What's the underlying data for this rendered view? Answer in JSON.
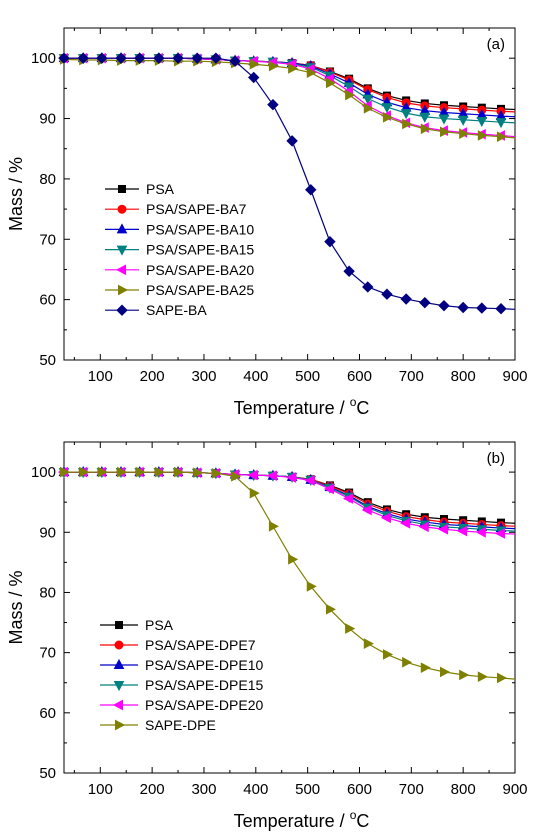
{
  "chart_data": [
    {
      "type": "line",
      "panel_label": "(a)",
      "xlabel": "Temperature / ",
      "xlabel_unit": "C",
      "xlabel_sup": "o",
      "ylabel": "Mass / %",
      "xlim": [
        30,
        900
      ],
      "ylim": [
        50,
        105
      ],
      "xticks": [
        100,
        200,
        300,
        400,
        500,
        600,
        700,
        800,
        900
      ],
      "yticks": [
        50,
        60,
        70,
        80,
        90,
        100
      ],
      "legend_position": "center-left",
      "series": [
        {
          "name": "PSA",
          "color": "#000000",
          "marker": "square",
          "x": [
            30,
            67,
            103,
            140,
            176,
            213,
            250,
            287,
            323,
            360,
            396,
            433,
            470,
            506,
            543,
            580,
            616,
            653,
            690,
            726,
            763,
            800,
            836,
            873,
            900
          ],
          "y": [
            100,
            100,
            100,
            100,
            100,
            100,
            100,
            99.9,
            99.8,
            99.6,
            99.5,
            99.4,
            99.2,
            98.8,
            97.8,
            96.6,
            95.0,
            93.8,
            93.0,
            92.5,
            92.2,
            92.0,
            91.8,
            91.6,
            91.5
          ]
        },
        {
          "name": "PSA/SAPE-BA7",
          "color": "#ff0000",
          "marker": "circle",
          "x": [
            30,
            67,
            103,
            140,
            176,
            213,
            250,
            287,
            323,
            360,
            396,
            433,
            470,
            506,
            543,
            580,
            616,
            653,
            690,
            726,
            763,
            800,
            836,
            873,
            900
          ],
          "y": [
            100,
            100,
            100,
            100,
            100,
            100,
            100,
            99.9,
            99.8,
            99.6,
            99.5,
            99.4,
            99.2,
            98.8,
            97.7,
            96.4,
            94.8,
            93.5,
            92.6,
            92.1,
            91.8,
            91.6,
            91.4,
            91.2,
            91.1
          ]
        },
        {
          "name": "PSA/SAPE-BA10",
          "color": "#0000cc",
          "marker": "triangle-up",
          "x": [
            30,
            67,
            103,
            140,
            176,
            213,
            250,
            287,
            323,
            360,
            396,
            433,
            470,
            506,
            543,
            580,
            616,
            653,
            690,
            726,
            763,
            800,
            836,
            873,
            900
          ],
          "y": [
            100,
            100,
            100,
            100,
            100,
            100,
            100,
            99.9,
            99.8,
            99.6,
            99.5,
            99.4,
            99.2,
            98.7,
            97.4,
            95.9,
            94.0,
            92.7,
            91.8,
            91.3,
            91.0,
            90.8,
            90.6,
            90.4,
            90.3
          ]
        },
        {
          "name": "PSA/SAPE-BA15",
          "color": "#008080",
          "marker": "triangle-down",
          "x": [
            30,
            67,
            103,
            140,
            176,
            213,
            250,
            287,
            323,
            360,
            396,
            433,
            470,
            506,
            543,
            580,
            616,
            653,
            690,
            726,
            763,
            800,
            836,
            873,
            900
          ],
          "y": [
            100,
            100,
            100,
            100,
            100,
            100,
            100,
            99.9,
            99.8,
            99.6,
            99.5,
            99.4,
            99.1,
            98.5,
            97.1,
            95.3,
            93.3,
            91.9,
            90.9,
            90.3,
            90.0,
            89.8,
            89.6,
            89.4,
            89.3
          ]
        },
        {
          "name": "PSA/SAPE-BA20",
          "color": "#ff00ff",
          "marker": "triangle-left",
          "x": [
            30,
            67,
            103,
            140,
            176,
            213,
            250,
            287,
            323,
            360,
            396,
            433,
            470,
            506,
            543,
            580,
            616,
            653,
            690,
            726,
            763,
            800,
            836,
            873,
            900
          ],
          "y": [
            100,
            100,
            100,
            100,
            100,
            100,
            100,
            99.9,
            99.8,
            99.6,
            99.5,
            99.3,
            99.0,
            98.2,
            96.6,
            94.5,
            92.1,
            90.5,
            89.3,
            88.5,
            88.0,
            87.7,
            87.4,
            87.2,
            87.0
          ]
        },
        {
          "name": "PSA/SAPE-BA25",
          "color": "#808000",
          "marker": "triangle-right",
          "x": [
            30,
            67,
            103,
            140,
            176,
            213,
            250,
            287,
            323,
            360,
            396,
            433,
            470,
            506,
            543,
            580,
            616,
            653,
            690,
            726,
            763,
            800,
            836,
            873,
            900
          ],
          "y": [
            99.8,
            99.7,
            99.7,
            99.6,
            99.6,
            99.6,
            99.5,
            99.5,
            99.4,
            99.2,
            99.0,
            98.7,
            98.3,
            97.6,
            95.9,
            93.9,
            91.7,
            90.2,
            89.1,
            88.3,
            87.8,
            87.5,
            87.2,
            87.0,
            86.8
          ]
        },
        {
          "name": "SAPE-BA",
          "color": "#000080",
          "marker": "diamond",
          "x": [
            30,
            67,
            103,
            140,
            176,
            213,
            250,
            287,
            323,
            360,
            396,
            433,
            470,
            506,
            543,
            580,
            616,
            653,
            690,
            726,
            763,
            800,
            836,
            873,
            900
          ],
          "y": [
            100,
            100,
            100,
            100,
            100,
            100,
            100,
            100,
            100,
            99.5,
            96.8,
            92.3,
            86.3,
            78.2,
            69.6,
            64.7,
            62.1,
            60.9,
            60.1,
            59.5,
            59.0,
            58.7,
            58.6,
            58.5,
            58.4
          ]
        }
      ]
    },
    {
      "type": "line",
      "panel_label": "(b)",
      "xlabel": "Temperature / ",
      "xlabel_unit": "C",
      "xlabel_sup": "o",
      "ylabel": "Mass / %",
      "xlim": [
        30,
        900
      ],
      "ylim": [
        50,
        105
      ],
      "xticks": [
        100,
        200,
        300,
        400,
        500,
        600,
        700,
        800,
        900
      ],
      "yticks": [
        50,
        60,
        70,
        80,
        90,
        100
      ],
      "legend_position": "bottom-left",
      "series": [
        {
          "name": "PSA",
          "color": "#000000",
          "marker": "square",
          "x": [
            30,
            67,
            103,
            140,
            176,
            213,
            250,
            287,
            323,
            360,
            396,
            433,
            470,
            506,
            543,
            580,
            616,
            653,
            690,
            726,
            763,
            800,
            836,
            873,
            900
          ],
          "y": [
            100,
            100,
            100,
            100,
            100,
            100,
            100,
            99.9,
            99.8,
            99.6,
            99.5,
            99.4,
            99.2,
            98.8,
            97.8,
            96.6,
            95.0,
            93.8,
            93.0,
            92.5,
            92.2,
            92.0,
            91.8,
            91.6,
            91.5
          ]
        },
        {
          "name": "PSA/SAPE-DPE7",
          "color": "#ff0000",
          "marker": "circle",
          "x": [
            30,
            67,
            103,
            140,
            176,
            213,
            250,
            287,
            323,
            360,
            396,
            433,
            470,
            506,
            543,
            580,
            616,
            653,
            690,
            726,
            763,
            800,
            836,
            873,
            900
          ],
          "y": [
            100,
            100,
            100,
            100,
            100,
            100,
            100,
            99.9,
            99.8,
            99.6,
            99.5,
            99.4,
            99.2,
            98.8,
            97.7,
            96.4,
            94.7,
            93.5,
            92.6,
            92.1,
            91.7,
            91.5,
            91.3,
            91.1,
            91.0
          ]
        },
        {
          "name": "PSA/SAPE-DPE10",
          "color": "#0000cc",
          "marker": "triangle-up",
          "x": [
            30,
            67,
            103,
            140,
            176,
            213,
            250,
            287,
            323,
            360,
            396,
            433,
            470,
            506,
            543,
            580,
            616,
            653,
            690,
            726,
            763,
            800,
            836,
            873,
            900
          ],
          "y": [
            100,
            100,
            100,
            100,
            100,
            100,
            100,
            99.9,
            99.8,
            99.6,
            99.5,
            99.4,
            99.2,
            98.7,
            97.5,
            96.1,
            94.3,
            93.1,
            92.2,
            91.7,
            91.3,
            91.1,
            90.9,
            90.7,
            90.6
          ]
        },
        {
          "name": "PSA/SAPE-DPE15",
          "color": "#008080",
          "marker": "triangle-down",
          "x": [
            30,
            67,
            103,
            140,
            176,
            213,
            250,
            287,
            323,
            360,
            396,
            433,
            470,
            506,
            543,
            580,
            616,
            653,
            690,
            726,
            763,
            800,
            836,
            873,
            900
          ],
          "y": [
            100,
            100,
            100,
            100,
            100,
            100,
            100,
            99.9,
            99.8,
            99.6,
            99.5,
            99.4,
            99.2,
            98.7,
            97.4,
            95.9,
            94.1,
            92.8,
            91.9,
            91.3,
            90.9,
            90.7,
            90.5,
            90.3,
            90.2
          ]
        },
        {
          "name": "PSA/SAPE-DPE20",
          "color": "#ff00ff",
          "marker": "triangle-left",
          "x": [
            30,
            67,
            103,
            140,
            176,
            213,
            250,
            287,
            323,
            360,
            396,
            433,
            470,
            506,
            543,
            580,
            616,
            653,
            690,
            726,
            763,
            800,
            836,
            873,
            900
          ],
          "y": [
            100,
            100,
            100,
            100,
            100,
            100,
            100,
            99.9,
            99.8,
            99.6,
            99.5,
            99.4,
            99.1,
            98.6,
            97.2,
            95.6,
            93.7,
            92.4,
            91.5,
            90.9,
            90.5,
            90.2,
            90.0,
            89.8,
            89.7
          ]
        },
        {
          "name": "SAPE-DPE",
          "color": "#808000",
          "marker": "triangle-right",
          "x": [
            30,
            67,
            103,
            140,
            176,
            213,
            250,
            287,
            323,
            360,
            396,
            433,
            470,
            506,
            543,
            580,
            616,
            653,
            690,
            726,
            763,
            800,
            836,
            873,
            900
          ],
          "y": [
            100,
            100,
            100,
            100,
            100,
            100,
            100,
            99.9,
            99.8,
            99.3,
            96.5,
            91.0,
            85.5,
            81.0,
            77.2,
            74.0,
            71.5,
            69.7,
            68.4,
            67.5,
            66.8,
            66.3,
            66.0,
            65.8,
            65.6
          ]
        }
      ]
    }
  ]
}
